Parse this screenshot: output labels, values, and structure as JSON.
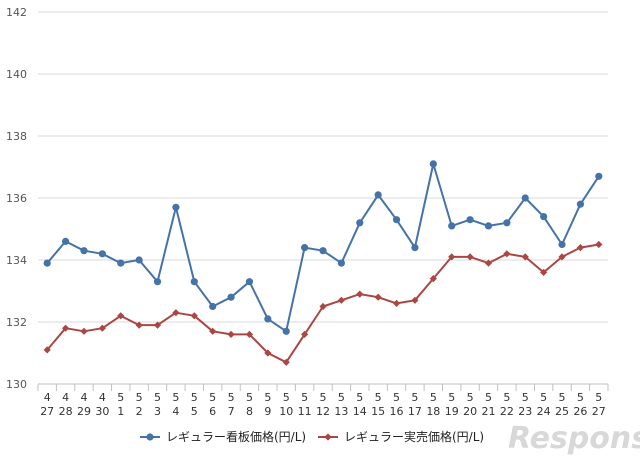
{
  "chart_data": {
    "type": "line",
    "categories": [
      [
        "4",
        "27"
      ],
      [
        "4",
        "28"
      ],
      [
        "4",
        "29"
      ],
      [
        "4",
        "30"
      ],
      [
        "5",
        "1"
      ],
      [
        "5",
        "2"
      ],
      [
        "5",
        "3"
      ],
      [
        "5",
        "4"
      ],
      [
        "5",
        "5"
      ],
      [
        "5",
        "6"
      ],
      [
        "5",
        "7"
      ],
      [
        "5",
        "8"
      ],
      [
        "5",
        "9"
      ],
      [
        "5",
        "10"
      ],
      [
        "5",
        "11"
      ],
      [
        "5",
        "12"
      ],
      [
        "5",
        "13"
      ],
      [
        "5",
        "14"
      ],
      [
        "5",
        "15"
      ],
      [
        "5",
        "16"
      ],
      [
        "5",
        "17"
      ],
      [
        "5",
        "18"
      ],
      [
        "5",
        "19"
      ],
      [
        "5",
        "20"
      ],
      [
        "5",
        "21"
      ],
      [
        "5",
        "22"
      ],
      [
        "5",
        "23"
      ],
      [
        "5",
        "24"
      ],
      [
        "5",
        "25"
      ],
      [
        "5",
        "26"
      ],
      [
        "5",
        "27"
      ]
    ],
    "series": [
      {
        "name": "レギュラー看板価格(円/L)",
        "color": "#4572a7",
        "marker": "circle",
        "values": [
          133.9,
          134.6,
          134.3,
          134.2,
          133.9,
          134.0,
          133.3,
          135.7,
          133.3,
          132.5,
          132.8,
          133.3,
          132.1,
          131.7,
          134.4,
          134.3,
          133.9,
          135.2,
          136.1,
          135.3,
          134.4,
          137.1,
          135.1,
          135.3,
          135.1,
          135.2,
          136.0,
          135.4,
          134.5,
          135.8,
          136.7
        ]
      },
      {
        "name": "レギュラー実売価格(円/L)",
        "color": "#aa4643",
        "marker": "diamond",
        "values": [
          131.1,
          131.8,
          131.7,
          131.8,
          132.2,
          131.9,
          131.9,
          132.3,
          132.2,
          131.7,
          131.6,
          131.6,
          131.0,
          130.7,
          131.6,
          132.5,
          132.7,
          132.9,
          132.8,
          132.6,
          132.7,
          133.4,
          134.1,
          134.1,
          133.9,
          134.2,
          134.1,
          133.6,
          134.1,
          134.4,
          134.5
        ]
      }
    ],
    "yticks": [
      "130",
      "132",
      "134",
      "136",
      "138",
      "140",
      "142"
    ],
    "ylim": [
      130,
      142
    ],
    "grid": true,
    "legend_position": "bottom"
  },
  "watermark": "Response."
}
